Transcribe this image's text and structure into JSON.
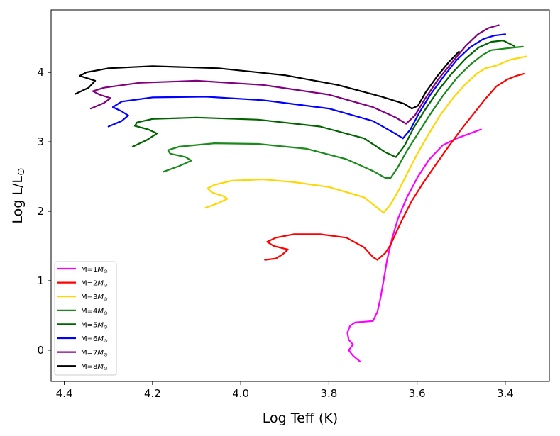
{
  "chart_data": {
    "type": "line",
    "title": "",
    "xlabel": "Log Teff (K)",
    "ylabel_main": "Log L/L",
    "ylabel_sub": "⊙",
    "xlim": [
      4.43,
      3.3
    ],
    "ylim": [
      -0.45,
      4.9
    ],
    "xticks": [
      4.4,
      4.2,
      4.0,
      3.8,
      3.6,
      3.4
    ],
    "xtick_labels": [
      "4.4",
      "4.2",
      "4.0",
      "3.8",
      "3.6",
      "3.4"
    ],
    "yticks": [
      0,
      1,
      2,
      3,
      4
    ],
    "ytick_labels": [
      "0",
      "1",
      "2",
      "3",
      "4"
    ],
    "grid": false,
    "legend_position": "lower-left",
    "legend_sub": "⊙",
    "series": [
      {
        "name": "M=1M",
        "color": "#ff00ff",
        "points": [
          [
            3.73,
            -0.16
          ],
          [
            3.745,
            -0.08
          ],
          [
            3.755,
            0.0
          ],
          [
            3.745,
            0.08
          ],
          [
            3.755,
            0.15
          ],
          [
            3.758,
            0.25
          ],
          [
            3.752,
            0.35
          ],
          [
            3.74,
            0.4
          ],
          [
            3.72,
            0.41
          ],
          [
            3.7,
            0.42
          ],
          [
            3.69,
            0.55
          ],
          [
            3.683,
            0.75
          ],
          [
            3.676,
            1.0
          ],
          [
            3.668,
            1.3
          ],
          [
            3.657,
            1.6
          ],
          [
            3.643,
            1.9
          ],
          [
            3.623,
            2.2
          ],
          [
            3.598,
            2.5
          ],
          [
            3.572,
            2.75
          ],
          [
            3.542,
            2.95
          ],
          [
            3.51,
            3.05
          ],
          [
            3.48,
            3.12
          ],
          [
            3.455,
            3.18
          ]
        ]
      },
      {
        "name": "M=2M",
        "color": "#ff0000",
        "points": [
          [
            3.945,
            1.3
          ],
          [
            3.92,
            1.32
          ],
          [
            3.905,
            1.38
          ],
          [
            3.893,
            1.45
          ],
          [
            3.925,
            1.5
          ],
          [
            3.94,
            1.56
          ],
          [
            3.92,
            1.62
          ],
          [
            3.88,
            1.67
          ],
          [
            3.82,
            1.67
          ],
          [
            3.76,
            1.62
          ],
          [
            3.72,
            1.48
          ],
          [
            3.7,
            1.34
          ],
          [
            3.69,
            1.3
          ],
          [
            3.672,
            1.4
          ],
          [
            3.66,
            1.52
          ],
          [
            3.647,
            1.7
          ],
          [
            3.632,
            1.9
          ],
          [
            3.612,
            2.15
          ],
          [
            3.587,
            2.4
          ],
          [
            3.56,
            2.65
          ],
          [
            3.53,
            2.92
          ],
          [
            3.5,
            3.18
          ],
          [
            3.47,
            3.42
          ],
          [
            3.445,
            3.62
          ],
          [
            3.42,
            3.8
          ],
          [
            3.395,
            3.9
          ],
          [
            3.375,
            3.95
          ],
          [
            3.358,
            3.98
          ]
        ]
      },
      {
        "name": "M=3M",
        "color": "#ffd700",
        "points": [
          [
            4.08,
            2.05
          ],
          [
            4.05,
            2.12
          ],
          [
            4.03,
            2.18
          ],
          [
            4.04,
            2.22
          ],
          [
            4.065,
            2.27
          ],
          [
            4.075,
            2.33
          ],
          [
            4.06,
            2.38
          ],
          [
            4.02,
            2.44
          ],
          [
            3.95,
            2.46
          ],
          [
            3.88,
            2.42
          ],
          [
            3.8,
            2.35
          ],
          [
            3.72,
            2.2
          ],
          [
            3.69,
            2.05
          ],
          [
            3.676,
            1.98
          ],
          [
            3.66,
            2.1
          ],
          [
            3.642,
            2.3
          ],
          [
            3.622,
            2.55
          ],
          [
            3.6,
            2.82
          ],
          [
            3.575,
            3.1
          ],
          [
            3.548,
            3.38
          ],
          [
            3.52,
            3.62
          ],
          [
            3.492,
            3.82
          ],
          [
            3.465,
            3.98
          ],
          [
            3.445,
            4.06
          ],
          [
            3.42,
            4.1
          ],
          [
            3.39,
            4.18
          ],
          [
            3.352,
            4.23
          ]
        ]
      },
      {
        "name": "M=4M",
        "color": "#1a8a1a",
        "points": [
          [
            4.175,
            2.57
          ],
          [
            4.14,
            2.65
          ],
          [
            4.112,
            2.73
          ],
          [
            4.125,
            2.78
          ],
          [
            4.16,
            2.83
          ],
          [
            4.165,
            2.88
          ],
          [
            4.14,
            2.93
          ],
          [
            4.06,
            2.98
          ],
          [
            3.96,
            2.97
          ],
          [
            3.85,
            2.9
          ],
          [
            3.76,
            2.75
          ],
          [
            3.7,
            2.58
          ],
          [
            3.672,
            2.48
          ],
          [
            3.66,
            2.48
          ],
          [
            3.645,
            2.62
          ],
          [
            3.625,
            2.85
          ],
          [
            3.6,
            3.1
          ],
          [
            3.572,
            3.38
          ],
          [
            3.542,
            3.66
          ],
          [
            3.51,
            3.92
          ],
          [
            3.478,
            4.12
          ],
          [
            3.452,
            4.25
          ],
          [
            3.432,
            4.32
          ],
          [
            3.405,
            4.34
          ],
          [
            3.378,
            4.36
          ],
          [
            3.36,
            4.37
          ]
        ]
      },
      {
        "name": "M=5M",
        "color": "#006400",
        "points": [
          [
            4.245,
            2.93
          ],
          [
            4.212,
            3.03
          ],
          [
            4.19,
            3.12
          ],
          [
            4.21,
            3.18
          ],
          [
            4.24,
            3.23
          ],
          [
            4.235,
            3.28
          ],
          [
            4.2,
            3.33
          ],
          [
            4.1,
            3.35
          ],
          [
            3.96,
            3.32
          ],
          [
            3.82,
            3.22
          ],
          [
            3.72,
            3.05
          ],
          [
            3.672,
            2.85
          ],
          [
            3.648,
            2.78
          ],
          [
            3.628,
            2.95
          ],
          [
            3.608,
            3.2
          ],
          [
            3.582,
            3.46
          ],
          [
            3.552,
            3.74
          ],
          [
            3.522,
            3.98
          ],
          [
            3.49,
            4.2
          ],
          [
            3.46,
            4.36
          ],
          [
            3.432,
            4.44
          ],
          [
            3.405,
            4.46
          ],
          [
            3.38,
            4.38
          ]
        ]
      },
      {
        "name": "M=6M",
        "color": "#0000ff",
        "points": [
          [
            4.3,
            3.22
          ],
          [
            4.27,
            3.3
          ],
          [
            4.255,
            3.38
          ],
          [
            4.27,
            3.44
          ],
          [
            4.29,
            3.5
          ],
          [
            4.27,
            3.58
          ],
          [
            4.2,
            3.64
          ],
          [
            4.08,
            3.65
          ],
          [
            3.95,
            3.6
          ],
          [
            3.8,
            3.48
          ],
          [
            3.7,
            3.3
          ],
          [
            3.65,
            3.12
          ],
          [
            3.632,
            3.05
          ],
          [
            3.615,
            3.18
          ],
          [
            3.595,
            3.42
          ],
          [
            3.57,
            3.68
          ],
          [
            3.54,
            3.94
          ],
          [
            3.51,
            4.18
          ],
          [
            3.48,
            4.36
          ],
          [
            3.45,
            4.48
          ],
          [
            3.425,
            4.53
          ],
          [
            3.4,
            4.55
          ]
        ]
      },
      {
        "name": "M=7M",
        "color": "#800080",
        "points": [
          [
            4.34,
            3.48
          ],
          [
            4.31,
            3.56
          ],
          [
            4.295,
            3.63
          ],
          [
            4.32,
            3.68
          ],
          [
            4.335,
            3.73
          ],
          [
            4.31,
            3.78
          ],
          [
            4.23,
            3.85
          ],
          [
            4.1,
            3.88
          ],
          [
            3.95,
            3.82
          ],
          [
            3.8,
            3.68
          ],
          [
            3.7,
            3.5
          ],
          [
            3.648,
            3.35
          ],
          [
            3.625,
            3.26
          ],
          [
            3.605,
            3.38
          ],
          [
            3.582,
            3.62
          ],
          [
            3.552,
            3.9
          ],
          [
            3.52,
            4.15
          ],
          [
            3.49,
            4.38
          ],
          [
            3.462,
            4.55
          ],
          [
            3.438,
            4.64
          ],
          [
            3.415,
            4.68
          ]
        ]
      },
      {
        "name": "M=8M",
        "color": "#000000",
        "points": [
          [
            4.375,
            3.69
          ],
          [
            4.345,
            3.78
          ],
          [
            4.33,
            3.88
          ],
          [
            4.365,
            3.95
          ],
          [
            4.35,
            4.0
          ],
          [
            4.3,
            4.06
          ],
          [
            4.2,
            4.09
          ],
          [
            4.05,
            4.06
          ],
          [
            3.9,
            3.96
          ],
          [
            3.78,
            3.82
          ],
          [
            3.68,
            3.65
          ],
          [
            3.63,
            3.55
          ],
          [
            3.612,
            3.48
          ],
          [
            3.598,
            3.52
          ],
          [
            3.58,
            3.72
          ],
          [
            3.555,
            3.94
          ],
          [
            3.528,
            4.15
          ],
          [
            3.505,
            4.3
          ]
        ]
      }
    ]
  }
}
